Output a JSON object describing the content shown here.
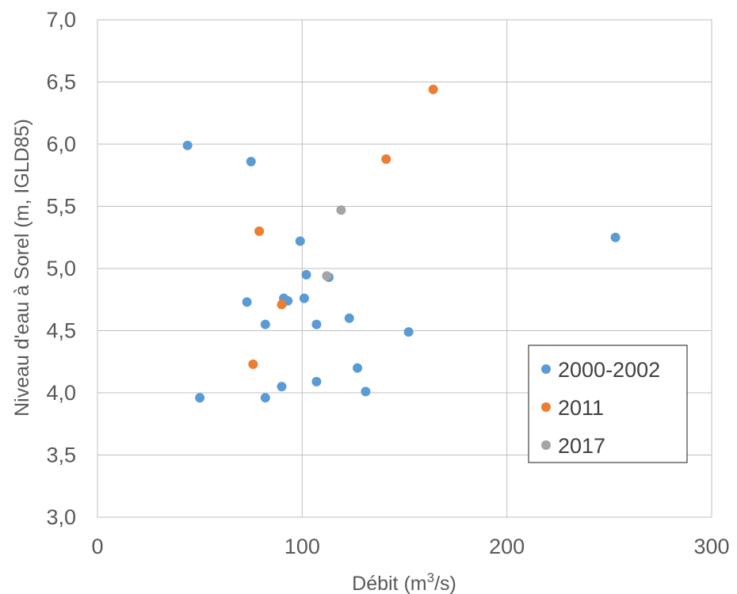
{
  "chart_data": {
    "type": "scatter",
    "title": "",
    "xlabel": "Débit (m³/s)",
    "xlabel_parts": {
      "prefix": "Débit (m",
      "sup": "3",
      "suffix": "/s)"
    },
    "ylabel": "Niveau d'eau à Sorel (m, IGLD85)",
    "xlim": [
      0,
      300
    ],
    "ylim": [
      3.0,
      7.0
    ],
    "x_ticks": [
      0,
      100,
      200,
      300
    ],
    "x_tick_labels": [
      "0",
      "100",
      "200",
      "300"
    ],
    "y_ticks": [
      3.0,
      3.5,
      4.0,
      4.5,
      5.0,
      5.5,
      6.0,
      6.5,
      7.0
    ],
    "y_tick_labels": [
      "3,0",
      "3,5",
      "4,0",
      "4,5",
      "5,0",
      "5,5",
      "6,0",
      "6,5",
      "7,0"
    ],
    "grid": true,
    "legend_position": "bottom-right",
    "series": [
      {
        "name": "2000-2002",
        "color": "#5B9BD5",
        "points": [
          [
            44,
            5.99
          ],
          [
            75,
            5.86
          ],
          [
            99,
            5.22
          ],
          [
            253,
            5.25
          ],
          [
            102,
            4.95
          ],
          [
            113,
            4.93
          ],
          [
            91,
            4.76
          ],
          [
            93,
            4.74
          ],
          [
            101,
            4.76
          ],
          [
            73,
            4.73
          ],
          [
            82,
            4.55
          ],
          [
            107,
            4.55
          ],
          [
            123,
            4.6
          ],
          [
            152,
            4.49
          ],
          [
            127,
            4.2
          ],
          [
            107,
            4.09
          ],
          [
            90,
            4.05
          ],
          [
            131,
            4.01
          ],
          [
            50,
            3.96
          ],
          [
            82,
            3.96
          ]
        ]
      },
      {
        "name": "2011",
        "color": "#ED7D31",
        "points": [
          [
            164,
            6.44
          ],
          [
            141,
            5.88
          ],
          [
            79,
            5.3
          ],
          [
            90,
            4.71
          ],
          [
            76,
            4.23
          ]
        ]
      },
      {
        "name": "2017",
        "color": "#A5A5A5",
        "points": [
          [
            119,
            5.47
          ],
          [
            112,
            4.94
          ]
        ]
      }
    ]
  }
}
